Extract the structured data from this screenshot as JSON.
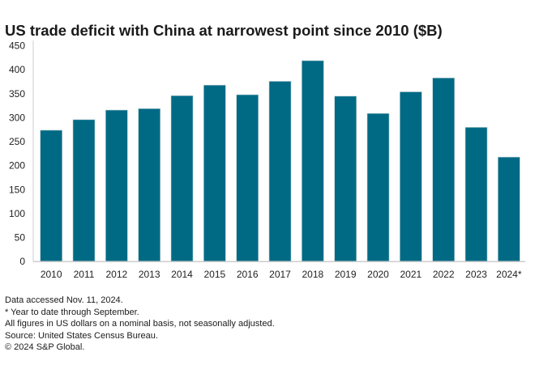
{
  "chart_data": {
    "type": "bar",
    "title": "US trade deficit with China at narrowest point since 2010 ($B)",
    "categories": [
      "2010",
      "2011",
      "2012",
      "2013",
      "2014",
      "2015",
      "2016",
      "2017",
      "2018",
      "2019",
      "2020",
      "2021",
      "2022",
      "2023",
      "2024*"
    ],
    "values": [
      273,
      295,
      315,
      318,
      345,
      367,
      347,
      375,
      418,
      344,
      308,
      353,
      382,
      279,
      217
    ],
    "ylim": [
      0,
      450
    ],
    "yticks": [
      "0",
      "50",
      "100",
      "150",
      "200",
      "250",
      "300",
      "350",
      "400",
      "450"
    ],
    "xlabel": "",
    "ylabel": "",
    "grid": false,
    "bar_color": "#006a85"
  },
  "notes": [
    "Data accessed Nov. 11, 2024.",
    "* Year to date through September.",
    "All figures in US dollars on a nominal basis, not seasonally adjusted.",
    "Source: United States Census Bureau.",
    "© 2024 S&P Global."
  ]
}
